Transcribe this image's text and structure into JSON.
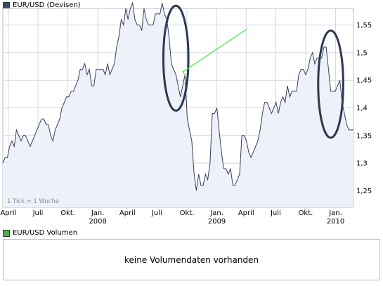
{
  "price_legend": {
    "label": "EUR/USD (Devisen)",
    "color": "#3a4a62"
  },
  "volume_legend": {
    "label": "EUR/USD Volumen",
    "color": "#4caf50"
  },
  "volume_box": {
    "message": "keine Volumendaten vorhanden"
  },
  "tick_note": "1 Tick = 1 Woche",
  "colors": {
    "line": "#3a3f58",
    "fill": "#eef0fa",
    "grid": "#d4d7e0",
    "annotation_ellipse": "#2c3a52",
    "annotation_line": "#55dd55"
  },
  "chart_data": {
    "type": "area",
    "ylim": [
      1.22,
      1.58
    ],
    "y_ticks": [
      1.25,
      1.3,
      1.35,
      1.4,
      1.45,
      1.5,
      1.55
    ],
    "y_tick_labels": [
      "1,25",
      "1,3",
      "1,35",
      "1,4",
      "1,45",
      "1,5",
      "1,55"
    ],
    "xlim": [
      "2007-03-15",
      "2010-02-25"
    ],
    "x_ticks": [
      {
        "date": "2007-04-01",
        "label": "April",
        "year": ""
      },
      {
        "date": "2007-07-01",
        "label": "Juli",
        "year": ""
      },
      {
        "date": "2007-10-01",
        "label": "Okt.",
        "year": ""
      },
      {
        "date": "2008-01-01",
        "label": "Jan.",
        "year": "2008"
      },
      {
        "date": "2008-04-01",
        "label": "April",
        "year": ""
      },
      {
        "date": "2008-07-01",
        "label": "Juli",
        "year": ""
      },
      {
        "date": "2008-10-01",
        "label": "Okt.",
        "year": ""
      },
      {
        "date": "2009-01-01",
        "label": "Jan.",
        "year": "2009"
      },
      {
        "date": "2009-04-01",
        "label": "April",
        "year": ""
      },
      {
        "date": "2009-07-01",
        "label": "Juli",
        "year": ""
      },
      {
        "date": "2009-10-01",
        "label": "Okt.",
        "year": ""
      },
      {
        "date": "2010-01-01",
        "label": "Jan.",
        "year": "2010"
      }
    ],
    "series": [
      {
        "values": [
          [
            "2007-03-15",
            1.3
          ],
          [
            "2007-03-22",
            1.31
          ],
          [
            "2007-03-29",
            1.31
          ],
          [
            "2007-04-05",
            1.33
          ],
          [
            "2007-04-12",
            1.34
          ],
          [
            "2007-04-19",
            1.33
          ],
          [
            "2007-04-26",
            1.36
          ],
          [
            "2007-05-03",
            1.35
          ],
          [
            "2007-05-10",
            1.34
          ],
          [
            "2007-05-17",
            1.35
          ],
          [
            "2007-05-24",
            1.35
          ],
          [
            "2007-05-31",
            1.34
          ],
          [
            "2007-06-07",
            1.33
          ],
          [
            "2007-06-14",
            1.34
          ],
          [
            "2007-06-21",
            1.35
          ],
          [
            "2007-06-28",
            1.36
          ],
          [
            "2007-07-05",
            1.37
          ],
          [
            "2007-07-12",
            1.38
          ],
          [
            "2007-07-19",
            1.38
          ],
          [
            "2007-07-26",
            1.37
          ],
          [
            "2007-08-02",
            1.37
          ],
          [
            "2007-08-09",
            1.35
          ],
          [
            "2007-08-16",
            1.34
          ],
          [
            "2007-08-23",
            1.36
          ],
          [
            "2007-08-30",
            1.37
          ],
          [
            "2007-09-06",
            1.38
          ],
          [
            "2007-09-13",
            1.4
          ],
          [
            "2007-09-20",
            1.41
          ],
          [
            "2007-09-27",
            1.42
          ],
          [
            "2007-10-04",
            1.42
          ],
          [
            "2007-10-11",
            1.43
          ],
          [
            "2007-10-18",
            1.43
          ],
          [
            "2007-10-25",
            1.44
          ],
          [
            "2007-11-01",
            1.45
          ],
          [
            "2007-11-08",
            1.47
          ],
          [
            "2007-11-15",
            1.47
          ],
          [
            "2007-11-22",
            1.48
          ],
          [
            "2007-11-29",
            1.46
          ],
          [
            "2007-12-06",
            1.47
          ],
          [
            "2007-12-13",
            1.44
          ],
          [
            "2007-12-20",
            1.44
          ],
          [
            "2007-12-27",
            1.47
          ],
          [
            "2008-01-03",
            1.47
          ],
          [
            "2008-01-10",
            1.47
          ],
          [
            "2008-01-17",
            1.47
          ],
          [
            "2008-01-24",
            1.46
          ],
          [
            "2008-01-31",
            1.48
          ],
          [
            "2008-02-07",
            1.46
          ],
          [
            "2008-02-14",
            1.47
          ],
          [
            "2008-02-21",
            1.48
          ],
          [
            "2008-02-28",
            1.51
          ],
          [
            "2008-03-06",
            1.53
          ],
          [
            "2008-03-13",
            1.56
          ],
          [
            "2008-03-20",
            1.55
          ],
          [
            "2008-03-27",
            1.58
          ],
          [
            "2008-04-03",
            1.56
          ],
          [
            "2008-04-10",
            1.58
          ],
          [
            "2008-04-17",
            1.59
          ],
          [
            "2008-04-24",
            1.56
          ],
          [
            "2008-05-01",
            1.55
          ],
          [
            "2008-05-08",
            1.55
          ],
          [
            "2008-05-15",
            1.54
          ],
          [
            "2008-05-22",
            1.58
          ],
          [
            "2008-05-29",
            1.56
          ],
          [
            "2008-06-05",
            1.55
          ],
          [
            "2008-06-12",
            1.55
          ],
          [
            "2008-06-19",
            1.55
          ],
          [
            "2008-06-26",
            1.57
          ],
          [
            "2008-07-03",
            1.57
          ],
          [
            "2008-07-10",
            1.57
          ],
          [
            "2008-07-17",
            1.59
          ],
          [
            "2008-07-24",
            1.57
          ],
          [
            "2008-07-31",
            1.56
          ],
          [
            "2008-08-07",
            1.53
          ],
          [
            "2008-08-14",
            1.48
          ],
          [
            "2008-08-21",
            1.47
          ],
          [
            "2008-08-28",
            1.46
          ],
          [
            "2008-09-04",
            1.44
          ],
          [
            "2008-09-11",
            1.42
          ],
          [
            "2008-09-18",
            1.44
          ],
          [
            "2008-09-25",
            1.46
          ],
          [
            "2008-10-02",
            1.38
          ],
          [
            "2008-10-09",
            1.36
          ],
          [
            "2008-10-16",
            1.34
          ],
          [
            "2008-10-23",
            1.28
          ],
          [
            "2008-10-30",
            1.25
          ],
          [
            "2008-11-06",
            1.28
          ],
          [
            "2008-11-13",
            1.26
          ],
          [
            "2008-11-20",
            1.26
          ],
          [
            "2008-11-27",
            1.28
          ],
          [
            "2008-12-04",
            1.27
          ],
          [
            "2008-12-11",
            1.3
          ],
          [
            "2008-12-18",
            1.39
          ],
          [
            "2008-12-25",
            1.39
          ],
          [
            "2009-01-01",
            1.4
          ],
          [
            "2009-01-08",
            1.36
          ],
          [
            "2009-01-15",
            1.32
          ],
          [
            "2009-01-22",
            1.29
          ],
          [
            "2009-01-29",
            1.29
          ],
          [
            "2009-02-05",
            1.28
          ],
          [
            "2009-02-12",
            1.29
          ],
          [
            "2009-02-19",
            1.26
          ],
          [
            "2009-02-26",
            1.26
          ],
          [
            "2009-03-05",
            1.27
          ],
          [
            "2009-03-12",
            1.28
          ],
          [
            "2009-03-19",
            1.35
          ],
          [
            "2009-03-26",
            1.35
          ],
          [
            "2009-04-02",
            1.34
          ],
          [
            "2009-04-09",
            1.32
          ],
          [
            "2009-04-16",
            1.31
          ],
          [
            "2009-04-23",
            1.32
          ],
          [
            "2009-04-30",
            1.33
          ],
          [
            "2009-05-07",
            1.34
          ],
          [
            "2009-05-14",
            1.36
          ],
          [
            "2009-05-21",
            1.39
          ],
          [
            "2009-05-28",
            1.41
          ],
          [
            "2009-06-04",
            1.41
          ],
          [
            "2009-06-11",
            1.4
          ],
          [
            "2009-06-18",
            1.39
          ],
          [
            "2009-06-25",
            1.4
          ],
          [
            "2009-07-02",
            1.41
          ],
          [
            "2009-07-09",
            1.39
          ],
          [
            "2009-07-16",
            1.41
          ],
          [
            "2009-07-23",
            1.42
          ],
          [
            "2009-07-30",
            1.41
          ],
          [
            "2009-08-06",
            1.44
          ],
          [
            "2009-08-13",
            1.42
          ],
          [
            "2009-08-20",
            1.43
          ],
          [
            "2009-08-27",
            1.43
          ],
          [
            "2009-09-03",
            1.43
          ],
          [
            "2009-09-10",
            1.46
          ],
          [
            "2009-09-17",
            1.47
          ],
          [
            "2009-09-24",
            1.47
          ],
          [
            "2009-10-01",
            1.46
          ],
          [
            "2009-10-08",
            1.47
          ],
          [
            "2009-10-15",
            1.49
          ],
          [
            "2009-10-22",
            1.5
          ],
          [
            "2009-10-29",
            1.48
          ],
          [
            "2009-11-05",
            1.49
          ],
          [
            "2009-11-12",
            1.49
          ],
          [
            "2009-11-19",
            1.49
          ],
          [
            "2009-11-26",
            1.51
          ],
          [
            "2009-12-03",
            1.51
          ],
          [
            "2009-12-10",
            1.47
          ],
          [
            "2009-12-17",
            1.43
          ],
          [
            "2009-12-24",
            1.43
          ],
          [
            "2009-12-31",
            1.43
          ],
          [
            "2010-01-07",
            1.44
          ],
          [
            "2010-01-14",
            1.45
          ],
          [
            "2010-01-21",
            1.41
          ],
          [
            "2010-01-28",
            1.39
          ],
          [
            "2010-02-04",
            1.37
          ],
          [
            "2010-02-11",
            1.36
          ],
          [
            "2010-02-18",
            1.36
          ],
          [
            "2010-02-25",
            1.36
          ]
        ]
      }
    ],
    "annotations": {
      "ellipses": [
        {
          "center": [
            "2008-08-28",
            1.49
          ],
          "rx_weeks": 5.5,
          "ry": 0.095
        },
        {
          "center": [
            "2009-12-17",
            1.443
          ],
          "rx_weeks": 5.5,
          "ry": 0.097
        }
      ],
      "trendline": {
        "from": [
          "2008-09-18",
          1.465
        ],
        "to": [
          "2009-04-02",
          1.542
        ]
      },
      "trendline_stub": {
        "from": [
          "2008-09-18",
          1.467
        ],
        "to": [
          "2008-09-28",
          1.455
        ]
      }
    }
  }
}
